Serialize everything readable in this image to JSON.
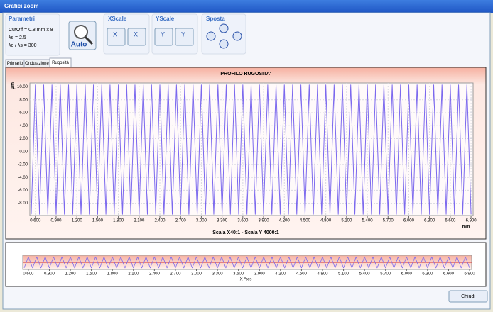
{
  "window": {
    "title": "Grafici zoom"
  },
  "toolbar": {
    "parametri": {
      "title": "Parametri",
      "lines": [
        "CutOff = 0.8 mm x 8",
        "λs = 2.5",
        "λc / λs = 300"
      ]
    },
    "auto": "Auto",
    "xscale": "XScale",
    "yscale": "YScale",
    "sposta": "Sposta",
    "x_buttons": [
      "X",
      "X"
    ],
    "y_buttons": [
      "Y",
      "Y"
    ]
  },
  "tabs": [
    "Primario",
    "Ondulazione",
    "Rugosità"
  ],
  "chart_data": {
    "type": "line",
    "title": "PROFILO RUGOSITA'",
    "y_unit": "µm",
    "x_unit": "mm",
    "caption": "Scala X40:1 - Scala Y 4000:1",
    "overview_x_label": "X Axis",
    "grid": true,
    "x": [
      0.54,
      0.6,
      0.66,
      0.72,
      0.78,
      0.84,
      0.9,
      0.96,
      1.02,
      1.08,
      1.14,
      1.2,
      1.26,
      1.32,
      1.38,
      1.44,
      1.5,
      1.56,
      1.62,
      1.68,
      1.74,
      1.8,
      1.86,
      1.92,
      1.98,
      2.04,
      2.1,
      2.16,
      2.22,
      2.28,
      2.34,
      2.4,
      2.46,
      2.52,
      2.58,
      2.64,
      2.7,
      2.76,
      2.82,
      2.88,
      2.94,
      3.0,
      3.06,
      3.12,
      3.18,
      3.24,
      3.3,
      3.36,
      3.42,
      3.48,
      3.54,
      3.6,
      3.66,
      3.72,
      3.78,
      3.84,
      3.9,
      3.96,
      4.02,
      4.08,
      4.14,
      4.2,
      4.26,
      4.32,
      4.38,
      4.44,
      4.5,
      4.56,
      4.62,
      4.68,
      4.74,
      4.8,
      4.86,
      4.92,
      4.98,
      5.04,
      5.1,
      5.16,
      5.22,
      5.28,
      5.34,
      5.4,
      5.46,
      5.52,
      5.58,
      5.64,
      5.7,
      5.76,
      5.82,
      5.88,
      5.94,
      6.0,
      6.06,
      6.12,
      6.18,
      6.24,
      6.3,
      6.36,
      6.42,
      6.48,
      6.54,
      6.6,
      6.66,
      6.72,
      6.78,
      6.84,
      6.9
    ],
    "series": [
      {
        "color": "#7b68ee",
        "values": [
          -9.7,
          10.3,
          -9.7,
          10.3,
          -9.7,
          10.3,
          -9.7,
          10.3,
          -9.7,
          10.3,
          -9.7,
          10.3,
          -9.7,
          10.3,
          -9.7,
          10.3,
          -9.7,
          10.3,
          -9.7,
          10.3,
          -9.7,
          10.3,
          -9.7,
          10.3,
          -9.7,
          10.3,
          -9.7,
          10.3,
          -9.7,
          10.3,
          -9.7,
          10.3,
          -9.7,
          10.3,
          -9.7,
          10.3,
          -9.7,
          10.3,
          -9.7,
          10.3,
          -9.7,
          10.3,
          -9.7,
          10.3,
          -9.7,
          10.3,
          -9.7,
          10.3,
          -9.7,
          10.3,
          -9.7,
          10.3,
          -9.7,
          10.3,
          -9.7,
          10.3,
          -9.7,
          10.3,
          -9.7,
          10.3,
          -9.7,
          10.3,
          -9.7,
          10.3,
          -9.7,
          10.3,
          -9.7,
          10.3,
          -9.7,
          10.3,
          -9.7,
          10.3,
          -9.7,
          10.3,
          -9.7,
          10.3,
          -9.7,
          10.3,
          -9.7,
          10.3,
          -9.7,
          10.3,
          -9.7,
          10.3,
          -9.7,
          10.3,
          -9.7,
          10.3,
          -9.7,
          10.3,
          -9.7,
          10.3,
          -9.7,
          10.3,
          -9.7,
          10.3,
          -9.7,
          10.3,
          -9.7,
          10.3,
          -9.7,
          10.3,
          -9.7,
          10.3,
          -9.7,
          10.3,
          -9.7
        ]
      }
    ],
    "xlim": [
      0.52,
      6.93
    ],
    "ylim": [
      -9.9,
      10.6
    ],
    "xticks": [
      {
        "value": 0.6,
        "label": "0.600"
      },
      {
        "value": 0.9,
        "label": "0.900"
      },
      {
        "value": 1.2,
        "label": "1.200"
      },
      {
        "value": 1.5,
        "label": "1.500"
      },
      {
        "value": 1.8,
        "label": "1.800"
      },
      {
        "value": 2.1,
        "label": "2.100"
      },
      {
        "value": 2.4,
        "label": "2.400"
      },
      {
        "value": 2.7,
        "label": "2.700"
      },
      {
        "value": 3.0,
        "label": "3.000"
      },
      {
        "value": 3.3,
        "label": "3.300"
      },
      {
        "value": 3.6,
        "label": "3.600"
      },
      {
        "value": 3.9,
        "label": "3.900"
      },
      {
        "value": 4.2,
        "label": "4.200"
      },
      {
        "value": 4.5,
        "label": "4.500"
      },
      {
        "value": 4.8,
        "label": "4.800"
      },
      {
        "value": 5.1,
        "label": "5.100"
      },
      {
        "value": 5.4,
        "label": "5.400"
      },
      {
        "value": 5.7,
        "label": "5.700"
      },
      {
        "value": 6.0,
        "label": "6.000"
      },
      {
        "value": 6.3,
        "label": "6.300"
      },
      {
        "value": 6.6,
        "label": "6.600"
      },
      {
        "value": 6.9,
        "label": "6.900"
      }
    ],
    "yticks": [
      {
        "value": 10,
        "label": "10.00"
      },
      {
        "value": 8,
        "label": "8.00"
      },
      {
        "value": 6,
        "label": "6.00"
      },
      {
        "value": 4,
        "label": "4.00"
      },
      {
        "value": 2,
        "label": "2.00"
      },
      {
        "value": 0,
        "label": "0.00"
      },
      {
        "value": -2,
        "label": "-2.00"
      },
      {
        "value": -4,
        "label": "-4.00"
      },
      {
        "value": -6,
        "label": "-6.00"
      },
      {
        "value": -8,
        "label": "-8.00"
      }
    ]
  },
  "buttons": {
    "close": "Chiudi"
  }
}
